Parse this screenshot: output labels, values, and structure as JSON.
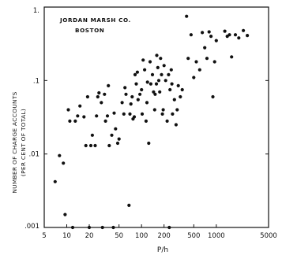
{
  "chart_data": {
    "type": "scatter",
    "title": "JORDAN MARSH CO.",
    "subtitle": "BOSTON",
    "ylabel_line1": "NUMBER OF CHARGE ACCOUNTS",
    "ylabel_line2": "(PER CENT OF TOTAL)",
    "xlabel": "P/h",
    "x_scale": "log",
    "y_scale": "log",
    "xlim": [
      5,
      5000
    ],
    "ylim": [
      0.001,
      1
    ],
    "grid": false,
    "x_ticks": [
      {
        "value": 5,
        "label": "5"
      },
      {
        "value": 10,
        "label": "10"
      },
      {
        "value": 20,
        "label": "20"
      },
      {
        "value": 50,
        "label": "50"
      },
      {
        "value": 100,
        "label": "100"
      },
      {
        "value": 200,
        "label": "200"
      },
      {
        "value": 500,
        "label": "500"
      },
      {
        "value": 1000,
        "label": "1000"
      },
      {
        "value": 5000,
        "label": "5000"
      }
    ],
    "y_ticks": [
      {
        "value": 1,
        "label": "1."
      },
      {
        "value": 0.1,
        "label": ".1"
      },
      {
        "value": 0.01,
        "label": ".01"
      },
      {
        "value": 0.001,
        "label": ".001"
      }
    ],
    "series": [
      {
        "points": [
          [
            7,
            0.0042
          ],
          [
            8,
            0.0095
          ],
          [
            9,
            0.0075
          ],
          [
            9.5,
            0.0015
          ],
          [
            10.5,
            0.04
          ],
          [
            11,
            0.028
          ],
          [
            12,
            0.001
          ],
          [
            13,
            0.028
          ],
          [
            14,
            0.033
          ],
          [
            15,
            0.045
          ],
          [
            17,
            0.032
          ],
          [
            18,
            0.013
          ],
          [
            19,
            0.06
          ],
          [
            20,
            0.001
          ],
          [
            21,
            0.013
          ],
          [
            22,
            0.018
          ],
          [
            24,
            0.013
          ],
          [
            25,
            0.033
          ],
          [
            26,
            0.06
          ],
          [
            27,
            0.068
          ],
          [
            29,
            0.05
          ],
          [
            30,
            0.001
          ],
          [
            32,
            0.065
          ],
          [
            33,
            0.028
          ],
          [
            35,
            0.033
          ],
          [
            36,
            0.085
          ],
          [
            37,
            0.013
          ],
          [
            40,
            0.018
          ],
          [
            42,
            0.001
          ],
          [
            43,
            0.036
          ],
          [
            45,
            0.022
          ],
          [
            48,
            0.014
          ],
          [
            50,
            0.016
          ],
          [
            55,
            0.05
          ],
          [
            58,
            0.035
          ],
          [
            60,
            0.08
          ],
          [
            62,
            0.065
          ],
          [
            68,
            0.002
          ],
          [
            70,
            0.035
          ],
          [
            72,
            0.048
          ],
          [
            75,
            0.06
          ],
          [
            77,
            0.03
          ],
          [
            80,
            0.032
          ],
          [
            82,
            0.12
          ],
          [
            85,
            0.09
          ],
          [
            88,
            0.13
          ],
          [
            90,
            0.055
          ],
          [
            95,
            0.065
          ],
          [
            100,
            0.075
          ],
          [
            102,
            0.035
          ],
          [
            105,
            0.19
          ],
          [
            110,
            0.14
          ],
          [
            115,
            0.028
          ],
          [
            118,
            0.05
          ],
          [
            120,
            0.095
          ],
          [
            125,
            0.014
          ],
          [
            130,
            0.18
          ],
          [
            133,
            0.09
          ],
          [
            140,
            0.12
          ],
          [
            145,
            0.07
          ],
          [
            150,
            0.04
          ],
          [
            152,
            0.065
          ],
          [
            158,
            0.09
          ],
          [
            160,
            0.22
          ],
          [
            165,
            0.15
          ],
          [
            170,
            0.1
          ],
          [
            175,
            0.07
          ],
          [
            180,
            0.2
          ],
          [
            185,
            0.12
          ],
          [
            190,
            0.035
          ],
          [
            195,
            0.04
          ],
          [
            200,
            0.16
          ],
          [
            210,
            0.1
          ],
          [
            220,
            0.028
          ],
          [
            230,
            0.12
          ],
          [
            235,
            0.001
          ],
          [
            240,
            0.075
          ],
          [
            250,
            0.14
          ],
          [
            255,
            0.09
          ],
          [
            260,
            0.035
          ],
          [
            275,
            0.055
          ],
          [
            290,
            0.025
          ],
          [
            300,
            0.04
          ],
          [
            310,
            0.085
          ],
          [
            330,
            0.06
          ],
          [
            350,
            0.075
          ],
          [
            400,
            0.75
          ],
          [
            420,
            0.2
          ],
          [
            460,
            0.42
          ],
          [
            500,
            0.11
          ],
          [
            540,
            0.18
          ],
          [
            600,
            0.14
          ],
          [
            650,
            0.45
          ],
          [
            700,
            0.28
          ],
          [
            750,
            0.2
          ],
          [
            800,
            0.46
          ],
          [
            850,
            0.4
          ],
          [
            900,
            0.06
          ],
          [
            950,
            0.18
          ],
          [
            1000,
            0.35
          ],
          [
            1300,
            0.47
          ],
          [
            1400,
            0.4
          ],
          [
            1500,
            0.42
          ],
          [
            1600,
            0.21
          ],
          [
            1800,
            0.42
          ],
          [
            2000,
            0.38
          ],
          [
            2300,
            0.48
          ],
          [
            2600,
            0.41
          ]
        ]
      }
    ]
  }
}
